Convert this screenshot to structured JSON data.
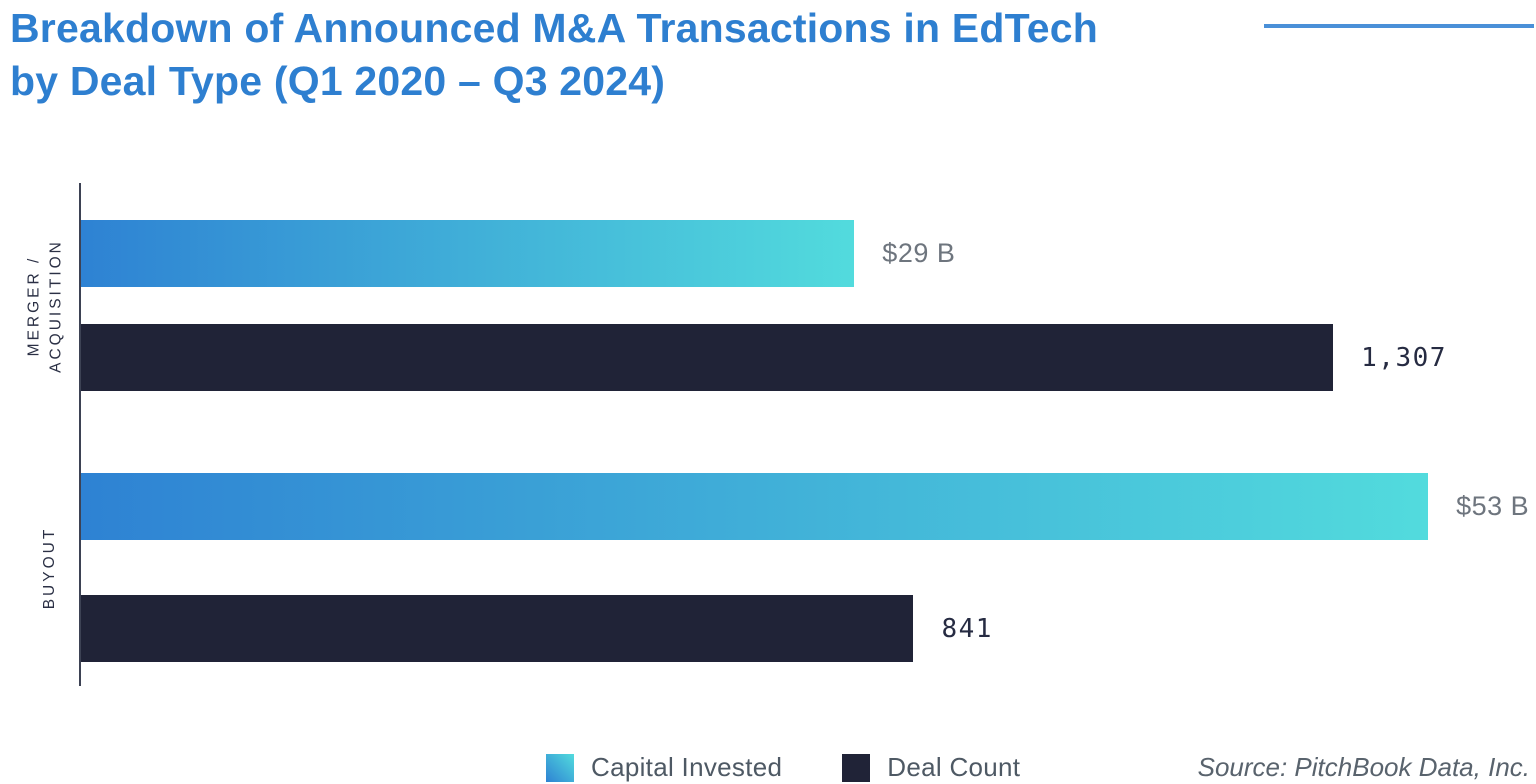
{
  "title": {
    "line1": "Breakdown of Announced M&A Transactions in EdTech",
    "line2": "by Deal Type (Q1 2020 – Q3 2024)"
  },
  "source": "Source: PitchBook Data, Inc.",
  "legend": {
    "capital_label": "Capital Invested",
    "count_label": "Deal Count"
  },
  "colors": {
    "title_blue": "#2e7fd0",
    "rule_blue": "#4a90d8",
    "bar_gradient_start": "#2e82d3",
    "bar_gradient_end": "#52dbdd",
    "bar_navy": "#202337",
    "axis": "#3d4254",
    "capital_value_text": "#6e757e",
    "count_value_text": "#262b42"
  },
  "chart_data": {
    "type": "bar",
    "orientation": "horizontal",
    "title": "Breakdown of Announced M&A Transactions in EdTech by Deal Type (Q1 2020 – Q3 2024)",
    "categories": [
      "MERGER /\nACQUISITION",
      "BUYOUT"
    ],
    "series": [
      {
        "name": "Capital Invested",
        "unit": "USD billions",
        "values": [
          29,
          53
        ],
        "labels": [
          "$29 B",
          "$53 B"
        ]
      },
      {
        "name": "Deal Count",
        "unit": "deals",
        "values": [
          1307,
          841
        ],
        "labels": [
          "1,307",
          "841"
        ]
      }
    ],
    "layout": {
      "grid": false,
      "legend_position": "bottom-center",
      "value_labels": "end-of-bar",
      "bar_width_pct": {
        "ma_capital": 56.2,
        "ma_count": 91.0,
        "bo_capital": 97.9,
        "bo_count": 60.5
      }
    }
  }
}
